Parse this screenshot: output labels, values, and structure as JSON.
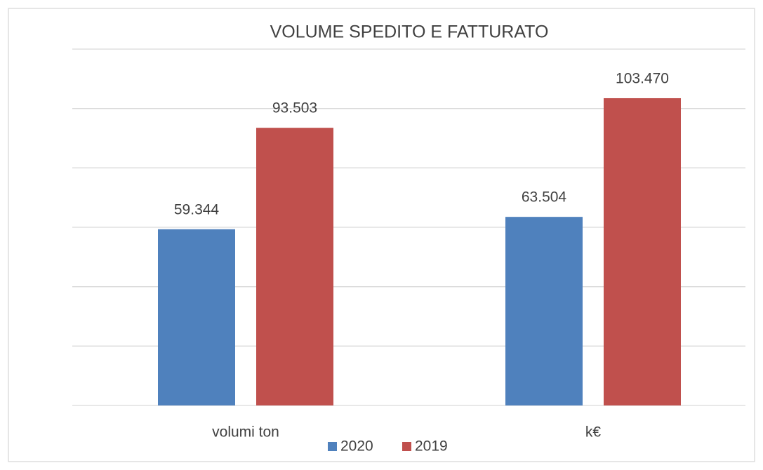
{
  "chart_data": {
    "type": "bar",
    "title": "VOLUME SPEDITO E FATTURATO",
    "categories": [
      "volumi ton",
      "k€"
    ],
    "series": [
      {
        "name": "2020",
        "color": "#4f81bd",
        "values": [
          59344,
          63504
        ],
        "value_labels": [
          "59.344",
          "63.504"
        ]
      },
      {
        "name": "2019",
        "color": "#c0504d",
        "values": [
          93503,
          103470
        ],
        "value_labels": [
          "93.503",
          "103.470"
        ]
      }
    ],
    "ylim": [
      0,
      120000
    ],
    "yticks": [
      0,
      20000,
      40000,
      60000,
      80000,
      100000,
      120000
    ],
    "grid": true,
    "legend": "bottom"
  }
}
